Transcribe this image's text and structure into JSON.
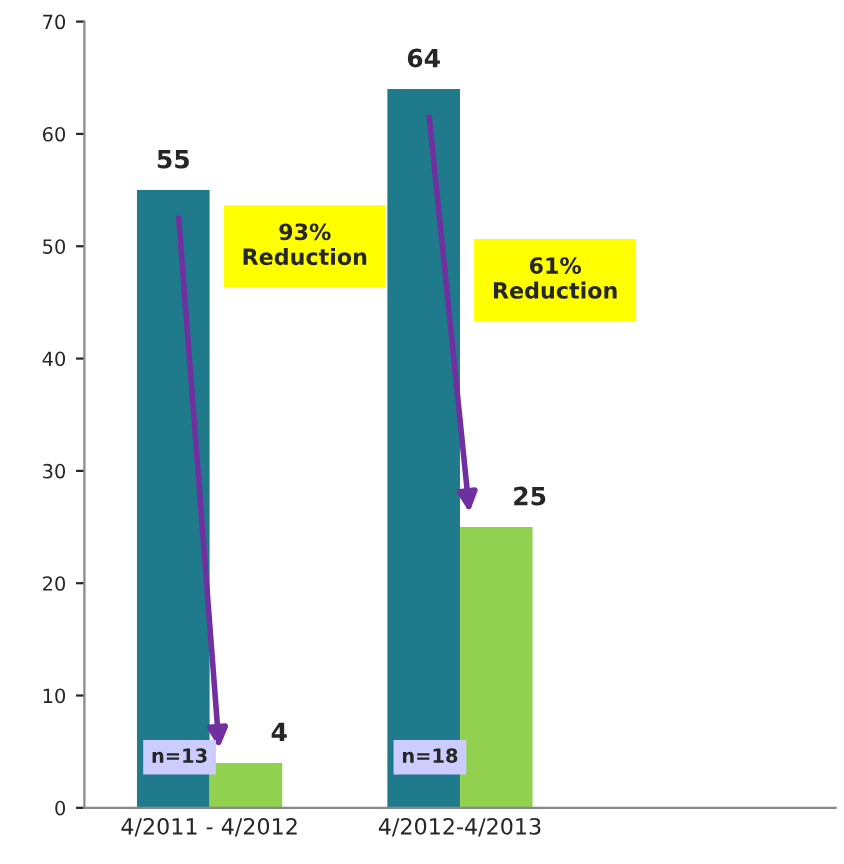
{
  "chart_data": {
    "type": "bar",
    "categories": [
      "4/2011 - 4/2012",
      "4/2012-4/2013",
      null
    ],
    "series": [
      {
        "color": "#1f7b8c",
        "values": [
          55,
          64,
          null
        ]
      },
      {
        "color": "#92d050",
        "values": [
          4,
          25,
          null
        ]
      }
    ],
    "ylim": [
      0,
      70
    ],
    "yticks": [
      0,
      10,
      20,
      30,
      40,
      50,
      60,
      70
    ],
    "data_labels": true,
    "grid": false,
    "legend": false,
    "annotations": [
      "93%\nReduction",
      "61%\nReduction",
      "n=13",
      "n=18"
    ]
  }
}
